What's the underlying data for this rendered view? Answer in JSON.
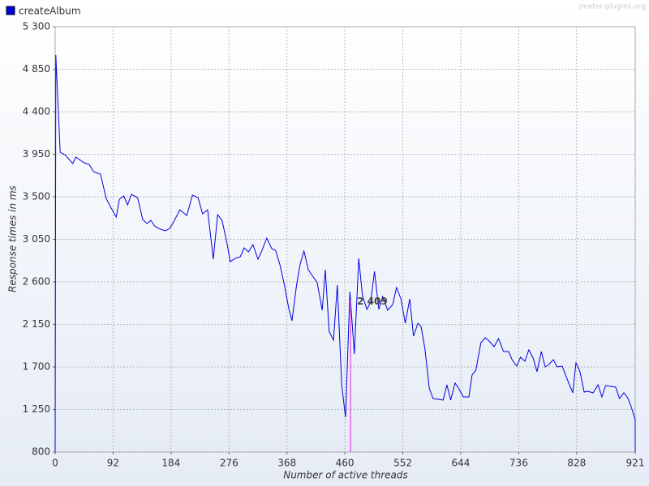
{
  "chart_data": {
    "type": "line",
    "watermark": "jmeter-plugins.org",
    "xlabel": "Number of active threads",
    "ylabel": "Response times in ms",
    "xlim": [
      0,
      921
    ],
    "ylim": [
      800,
      5300
    ],
    "xticks": [
      0,
      92,
      184,
      276,
      368,
      460,
      552,
      644,
      736,
      828,
      921
    ],
    "yticks": [
      800,
      {
        "value": 1250,
        "label": "1 250"
      },
      {
        "value": 1700,
        "label": "1 700"
      },
      {
        "value": 2150,
        "label": "2 150"
      },
      {
        "value": 2600,
        "label": "2 600"
      },
      {
        "value": 3050,
        "label": "3 050"
      },
      {
        "value": 3500,
        "label": "3 500"
      },
      {
        "value": 3950,
        "label": "3 950"
      },
      {
        "value": 4400,
        "label": "4 400"
      },
      {
        "value": 4850,
        "label": "4 850"
      },
      {
        "value": 5300,
        "label": "5 300"
      }
    ],
    "grid": true,
    "legend": "top-left",
    "x": [
      0,
      1,
      8,
      17,
      28,
      33,
      46,
      54,
      61,
      72,
      81,
      89,
      97,
      102,
      109,
      115,
      121,
      131,
      139,
      146,
      152,
      158,
      167,
      175,
      182,
      188,
      198,
      209,
      218,
      227,
      234,
      242,
      251,
      258,
      265,
      272,
      278,
      286,
      294,
      300,
      307,
      314,
      322,
      328,
      336,
      344,
      350,
      357,
      364,
      371,
      376,
      383,
      389,
      395,
      402,
      408,
      416,
      424,
      429,
      435,
      442,
      448,
      455,
      461,
      468,
      475,
      482,
      488,
      495,
      501,
      507,
      514,
      520,
      528,
      536,
      542,
      549,
      556,
      563,
      569,
      576,
      581,
      587,
      594,
      600,
      616,
      622,
      628,
      635,
      641,
      648,
      657,
      662,
      668,
      676,
      683,
      689,
      697,
      704,
      712,
      720,
      726,
      733,
      739,
      746,
      752,
      759,
      765,
      772,
      778,
      784,
      791,
      797,
      805,
      814,
      822,
      827,
      833,
      840,
      846,
      854,
      862,
      868,
      874,
      882,
      890,
      896,
      903,
      909,
      914,
      921,
      921
    ],
    "series": [
      {
        "name": "createAlbum",
        "color": "#0000e0",
        "values": [
          800,
          5000,
          3971,
          3937,
          3851,
          3920,
          3860,
          3843,
          3766,
          3740,
          3483,
          3380,
          3286,
          3474,
          3509,
          3414,
          3526,
          3491,
          3260,
          3217,
          3251,
          3191,
          3157,
          3140,
          3166,
          3234,
          3363,
          3303,
          3517,
          3491,
          3320,
          3363,
          2840,
          3311,
          3251,
          3037,
          2814,
          2849,
          2866,
          2960,
          2917,
          2994,
          2840,
          2926,
          3063,
          2951,
          2934,
          2780,
          2566,
          2317,
          2189,
          2549,
          2789,
          2926,
          2729,
          2669,
          2591,
          2300,
          2729,
          2077,
          1983,
          2566,
          1511,
          1169,
          2497,
          1837,
          2849,
          2454,
          2309,
          2386,
          2711,
          2309,
          2446,
          2300,
          2360,
          2540,
          2420,
          2163,
          2420,
          2026,
          2163,
          2129,
          1897,
          1477,
          1366,
          1349,
          1511,
          1349,
          1529,
          1469,
          1383,
          1383,
          1614,
          1666,
          1957,
          2009,
          1974,
          1914,
          2000,
          1863,
          1863,
          1769,
          1709,
          1803,
          1760,
          1880,
          1794,
          1649,
          1863,
          1700,
          1726,
          1777,
          1700,
          1709,
          1554,
          1426,
          1743,
          1657,
          1434,
          1443,
          1426,
          1511,
          1383,
          1503,
          1494,
          1486,
          1366,
          1426,
          1374,
          1289,
          1143,
          800
        ]
      }
    ],
    "marker": {
      "x": 469,
      "value": 2409,
      "label": "2 409",
      "color": "#e020e0"
    }
  }
}
